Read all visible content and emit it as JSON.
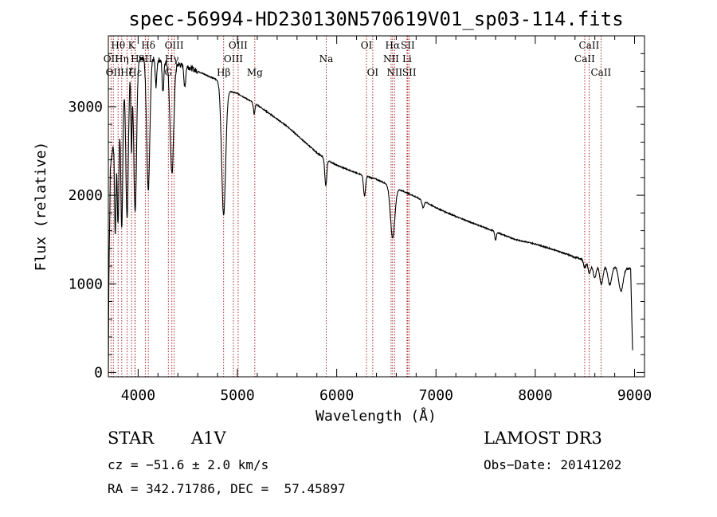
{
  "chart_data": {
    "type": "line",
    "title": "spec-56994-HD230130N570619V01_sp03-114.fits",
    "xlabel": "Wavelength (Å)",
    "ylabel": "Flux (relative)",
    "xlim": [
      3700,
      9100
    ],
    "ylim": [
      -50,
      3800
    ],
    "xticks": [
      4000,
      5000,
      6000,
      7000,
      8000,
      9000
    ],
    "yticks": [
      0,
      1000,
      2000,
      3000
    ],
    "continuum": [
      [
        3700,
        0
      ],
      [
        3705,
        1000
      ],
      [
        3720,
        2300
      ],
      [
        3760,
        2700
      ],
      [
        3800,
        3000
      ],
      [
        3850,
        3200
      ],
      [
        3900,
        3350
      ],
      [
        3950,
        3480
      ],
      [
        4000,
        3550
      ],
      [
        4100,
        3560
      ],
      [
        4200,
        3530
      ],
      [
        4300,
        3500
      ],
      [
        4400,
        3480
      ],
      [
        4500,
        3450
      ],
      [
        4600,
        3400
      ],
      [
        4700,
        3350
      ],
      [
        4800,
        3300
      ],
      [
        4900,
        3180
      ],
      [
        5000,
        3150
      ],
      [
        5200,
        3020
      ],
      [
        5500,
        2780
      ],
      [
        5800,
        2480
      ],
      [
        5900,
        2400
      ],
      [
        6000,
        2340
      ],
      [
        6200,
        2250
      ],
      [
        6400,
        2180
      ],
      [
        6600,
        2080
      ],
      [
        6800,
        1980
      ],
      [
        7000,
        1860
      ],
      [
        7200,
        1760
      ],
      [
        7500,
        1630
      ],
      [
        7800,
        1500
      ],
      [
        8000,
        1450
      ],
      [
        8200,
        1380
      ],
      [
        8400,
        1300
      ],
      [
        8500,
        1270
      ],
      [
        8700,
        1220
      ],
      [
        8900,
        1180
      ],
      [
        8960,
        1170
      ],
      [
        8980,
        250
      ]
    ],
    "absorption_features": [
      {
        "center": 3770,
        "width": 8,
        "depth": 1200
      },
      {
        "center": 3798,
        "width": 9,
        "depth": 1300
      },
      {
        "center": 3835,
        "width": 10,
        "depth": 1500
      },
      {
        "center": 3889,
        "width": 12,
        "depth": 1600
      },
      {
        "center": 3933,
        "width": 6,
        "depth": 900
      },
      {
        "center": 3970,
        "width": 14,
        "depth": 1700
      },
      {
        "center": 4102,
        "width": 16,
        "depth": 1500
      },
      {
        "center": 4180,
        "width": 8,
        "depth": 300
      },
      {
        "center": 4250,
        "width": 8,
        "depth": 350
      },
      {
        "center": 4340,
        "width": 18,
        "depth": 1250
      },
      {
        "center": 4470,
        "width": 8,
        "depth": 250
      },
      {
        "center": 4861,
        "width": 20,
        "depth": 1450
      },
      {
        "center": 5169,
        "width": 8,
        "depth": 120
      },
      {
        "center": 5890,
        "width": 10,
        "depth": 300
      },
      {
        "center": 6280,
        "width": 10,
        "depth": 230
      },
      {
        "center": 6563,
        "width": 22,
        "depth": 580
      },
      {
        "center": 6870,
        "width": 10,
        "depth": 80
      },
      {
        "center": 7600,
        "width": 8,
        "depth": 90
      },
      {
        "center": 8498,
        "width": 12,
        "depth": 90
      },
      {
        "center": 8545,
        "width": 14,
        "depth": 140
      },
      {
        "center": 8598,
        "width": 16,
        "depth": 180
      },
      {
        "center": 8665,
        "width": 18,
        "depth": 230
      },
      {
        "center": 8750,
        "width": 20,
        "depth": 220
      },
      {
        "center": 8863,
        "width": 22,
        "depth": 270
      }
    ],
    "spectral_lines": [
      {
        "wavelength": 3727,
        "label": "OII",
        "row": 2
      },
      {
        "wavelength": 3750,
        "label": "OII",
        "row": 3
      },
      {
        "wavelength": 3798,
        "label": "Hθ",
        "row": 1
      },
      {
        "wavelength": 3835,
        "label": "Hη",
        "row": 2
      },
      {
        "wavelength": 3889,
        "label": "Hζ",
        "row": 3
      },
      {
        "wavelength": 3934,
        "label": "K",
        "row": 1
      },
      {
        "wavelength": 3968,
        "label": "H",
        "row": 2
      },
      {
        "wavelength": 3970,
        "label": "Hε",
        "row": 3
      },
      {
        "wavelength": 4072,
        "label": "SII",
        "row": 2
      },
      {
        "wavelength": 4102,
        "label": "Hδ",
        "row": 1
      },
      {
        "wavelength": 4304,
        "label": "G",
        "row": 3
      },
      {
        "wavelength": 4340,
        "label": "Hγ",
        "row": 2
      },
      {
        "wavelength": 4363,
        "label": "OIII",
        "row": 1
      },
      {
        "wavelength": 4861,
        "label": "Hβ",
        "row": 3
      },
      {
        "wavelength": 4959,
        "label": "OIII",
        "row": 2
      },
      {
        "wavelength": 5007,
        "label": "OIII",
        "row": 1
      },
      {
        "wavelength": 5175,
        "label": "Mg",
        "row": 3
      },
      {
        "wavelength": 5894,
        "label": "Na",
        "row": 2
      },
      {
        "wavelength": 6300,
        "label": "OI",
        "row": 1
      },
      {
        "wavelength": 6363,
        "label": "OI",
        "row": 3
      },
      {
        "wavelength": 6548,
        "label": "NII",
        "row": 2
      },
      {
        "wavelength": 6563,
        "label": "Hα",
        "row": 1
      },
      {
        "wavelength": 6583,
        "label": "NII",
        "row": 3
      },
      {
        "wavelength": 6708,
        "label": "Li",
        "row": 2
      },
      {
        "wavelength": 6716,
        "label": "SII",
        "row": 1
      },
      {
        "wavelength": 6731,
        "label": "SII",
        "row": 3
      },
      {
        "wavelength": 8498,
        "label": "CaII",
        "row": 2
      },
      {
        "wavelength": 8542,
        "label": "CaII",
        "row": 1
      },
      {
        "wavelength": 8662,
        "label": "CaII",
        "row": 3
      }
    ]
  },
  "info": {
    "object_type": "STAR",
    "subclass": "A1V",
    "survey": "LAMOST DR3",
    "cz": "cz = −51.6 ± 2.0 km/s",
    "obs_date": "Obs−Date: 20141202",
    "coords": "RA = 342.71786, DEC =  57.45897"
  },
  "colors": {
    "line_marker": "#a31212",
    "spectrum": "#000000"
  }
}
